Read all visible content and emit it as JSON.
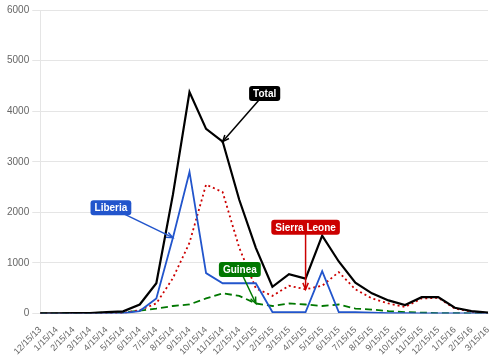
{
  "chart_data": {
    "type": "line",
    "categories": [
      "12/15/13",
      "1/15/14",
      "2/15/14",
      "3/15/14",
      "4/15/14",
      "5/15/14",
      "6/15/14",
      "7/15/14",
      "8/15/14",
      "9/15/14",
      "10/15/14",
      "11/15/14",
      "12/15/14",
      "1/15/15",
      "2/15/15",
      "3/15/15",
      "4/15/15",
      "5/15/15",
      "6/15/15",
      "7/15/15",
      "8/15/15",
      "9/15/15",
      "10/15/15",
      "11/15/15",
      "12/15/15",
      "1/15/16",
      "2/15/16",
      "3/15/16"
    ],
    "series": [
      {
        "name": "Total",
        "color": "#000000",
        "line_style": "solid",
        "values": [
          5,
          5,
          10,
          10,
          30,
          45,
          180,
          600,
          2350,
          4380,
          3650,
          3400,
          2250,
          1300,
          530,
          780,
          690,
          1540,
          1030,
          610,
          400,
          260,
          170,
          325,
          325,
          115,
          50,
          20
        ]
      },
      {
        "name": "Liberia",
        "color": "#2255CC",
        "line_style": "solid",
        "values": [
          0,
          0,
          0,
          0,
          5,
          10,
          50,
          300,
          1500,
          2800,
          800,
          600,
          600,
          600,
          30,
          30,
          30,
          840,
          30,
          30,
          20,
          10,
          10,
          5,
          5,
          5,
          5,
          5
        ]
      },
      {
        "name": "Sierra Leone",
        "color": "#CC0000",
        "line_style": "dotted",
        "values": [
          0,
          0,
          0,
          0,
          5,
          10,
          70,
          200,
          700,
          1400,
          2550,
          2400,
          1300,
          500,
          350,
          550,
          480,
          550,
          820,
          480,
          300,
          200,
          130,
          300,
          310,
          100,
          40,
          10
        ]
      },
      {
        "name": "Guinea",
        "color": "#007700",
        "line_style": "dashed",
        "values": [
          5,
          5,
          10,
          10,
          20,
          25,
          60,
          100,
          150,
          180,
          300,
          400,
          350,
          200,
          150,
          200,
          180,
          150,
          180,
          100,
          80,
          50,
          30,
          20,
          10,
          10,
          5,
          5
        ]
      }
    ],
    "ylim": [
      0,
      6000
    ],
    "yticks": [
      0,
      1000,
      2000,
      3000,
      4000,
      5000,
      6000
    ],
    "grid": "y",
    "annotations": [
      {
        "text": "Total",
        "x": "11/15/14",
        "y": 3400
      },
      {
        "text": "Liberia",
        "x": "8/15/14",
        "y": 1500
      },
      {
        "text": "Sierra Leone",
        "x": "4/15/15",
        "y": 480
      },
      {
        "text": "Guinea",
        "x": "1/15/15",
        "y": 200
      }
    ]
  }
}
